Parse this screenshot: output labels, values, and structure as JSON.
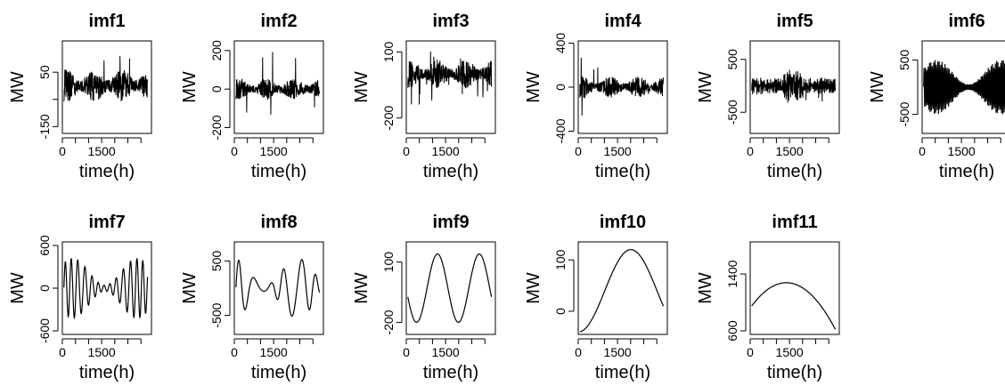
{
  "chart_data": [
    {
      "type": "line",
      "title": "imf1",
      "xlabel": "time(h)",
      "ylabel": "MW",
      "xticks": [
        0,
        1500
      ],
      "yticks": [
        -150,
        -50,
        50
      ],
      "ytick_labels": [
        "-150",
        "",
        "50"
      ],
      "ylim": [
        -175,
        165
      ],
      "signal": {
        "kind": "noise",
        "amp": 55,
        "spike": 115,
        "cycles": 0,
        "seed": 11
      }
    },
    {
      "type": "line",
      "title": "imf2",
      "xlabel": "time(h)",
      "ylabel": "MW",
      "xticks": [
        0,
        1500
      ],
      "yticks": [
        -200,
        0,
        200
      ],
      "ylim": [
        -230,
        250
      ],
      "signal": {
        "kind": "noise",
        "amp": 50,
        "spike": 200,
        "cycles": 0,
        "seed": 23
      }
    },
    {
      "type": "line",
      "title": "imf3",
      "xlabel": "time(h)",
      "ylabel": "MW",
      "xticks": [
        0,
        1500
      ],
      "yticks": [
        -200,
        100
      ],
      "ylim": [
        -270,
        150
      ],
      "signal": {
        "kind": "noise",
        "amp": 60,
        "spike": 150,
        "cycles": 0,
        "seed": 37
      }
    },
    {
      "type": "line",
      "title": "imf4",
      "xlabel": "time(h)",
      "ylabel": "MW",
      "xticks": [
        0,
        1500
      ],
      "yticks": [
        -400,
        0,
        400
      ],
      "ylim": [
        -420,
        420
      ],
      "signal": {
        "kind": "noise",
        "amp": 90,
        "spike": 280,
        "cycles": 0,
        "seed": 41
      }
    },
    {
      "type": "line",
      "title": "imf5",
      "xlabel": "time(h)",
      "ylabel": "MW",
      "xticks": [
        0,
        1500
      ],
      "yticks": [
        -500,
        500
      ],
      "ylim": [
        -900,
        850
      ],
      "signal": {
        "kind": "bursty",
        "amp": 250,
        "spike": 700,
        "cycles": 180,
        "seed": 53
      }
    },
    {
      "type": "line",
      "title": "imf6",
      "xlabel": "time(h)",
      "ylabel": "MW",
      "xticks": [
        0,
        1500
      ],
      "yticks": [
        -500,
        500
      ],
      "ylim": [
        -850,
        850
      ],
      "signal": {
        "kind": "osc",
        "amp": 500,
        "cycles": 60,
        "seed": 67
      }
    },
    {
      "type": "line",
      "title": "imf7",
      "xlabel": "time(h)",
      "ylabel": "MW",
      "xticks": [
        0,
        1500
      ],
      "yticks": [
        -600,
        0,
        600
      ],
      "ylim": [
        -650,
        650
      ],
      "signal": {
        "kind": "osc",
        "amp": 420,
        "cycles": 13,
        "seed": 71
      }
    },
    {
      "type": "line",
      "title": "imf8",
      "xlabel": "time(h)",
      "ylabel": "MW",
      "xticks": [
        0,
        1500
      ],
      "yticks": [
        -500,
        500
      ],
      "ylim": [
        -850,
        850
      ],
      "signal": {
        "kind": "osc",
        "amp": 550,
        "cycles": 5.5,
        "seed": 83
      }
    },
    {
      "type": "line",
      "title": "imf9",
      "xlabel": "time(h)",
      "ylabel": "MW",
      "xticks": [
        0,
        1500
      ],
      "yticks": [
        -200,
        100
      ],
      "ylim": [
        -260,
        200
      ],
      "signal": {
        "kind": "sine",
        "center": -30,
        "amp": 170,
        "cycles": 2,
        "phase": 3.4
      }
    },
    {
      "type": "line",
      "title": "imf10",
      "xlabel": "time(h)",
      "ylabel": "MW",
      "xticks": [
        0,
        1500
      ],
      "yticks": [
        0,
        100
      ],
      "ylim": [
        -45,
        135
      ],
      "signal": {
        "kind": "sine",
        "center": 40,
        "amp": 80,
        "cycles": 0.8,
        "phase": -1.5
      }
    },
    {
      "type": "line",
      "title": "imf11",
      "xlabel": "time(h)",
      "ylabel": "MW",
      "xticks": [
        0,
        1500
      ],
      "yticks": [
        600,
        1400
      ],
      "ylim": [
        550,
        1850
      ],
      "signal": {
        "kind": "arch",
        "start": 950,
        "peak": 1740,
        "end": 620
      }
    }
  ]
}
